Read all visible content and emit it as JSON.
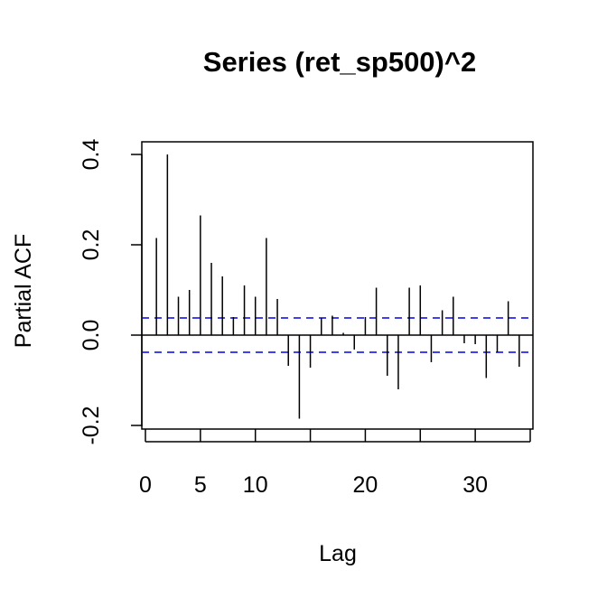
{
  "chart_data": {
    "type": "bar",
    "title": "Series  (ret_sp500)^2",
    "xlabel": "Lag",
    "ylabel": "Partial ACF",
    "xlim": [
      0,
      35
    ],
    "ylim": [
      -0.2,
      0.4
    ],
    "x_ticks": [
      0,
      5,
      10,
      20,
      30
    ],
    "y_ticks": [
      -0.2,
      0.0,
      0.2,
      0.4
    ],
    "y_tick_labels": [
      "-0.2",
      "0.0",
      "0.2",
      "0.4"
    ],
    "confidence_band": 0.038,
    "confidence_color": "#0000ee",
    "lags": [
      1,
      2,
      3,
      4,
      5,
      6,
      7,
      8,
      9,
      10,
      11,
      12,
      13,
      14,
      15,
      16,
      17,
      18,
      19,
      20,
      21,
      22,
      23,
      24,
      25,
      26,
      27,
      28,
      29,
      30,
      31,
      32,
      33,
      34
    ],
    "values": [
      0.215,
      0.4,
      0.085,
      0.1,
      0.265,
      0.16,
      0.13,
      0.04,
      0.11,
      0.085,
      0.215,
      0.08,
      -0.068,
      -0.185,
      -0.072,
      0.038,
      0.043,
      0.005,
      -0.032,
      0.04,
      0.105,
      -0.09,
      -0.12,
      0.105,
      0.11,
      -0.06,
      0.055,
      0.085,
      -0.018,
      -0.02,
      -0.095,
      -0.038,
      0.075,
      -0.07
    ]
  }
}
